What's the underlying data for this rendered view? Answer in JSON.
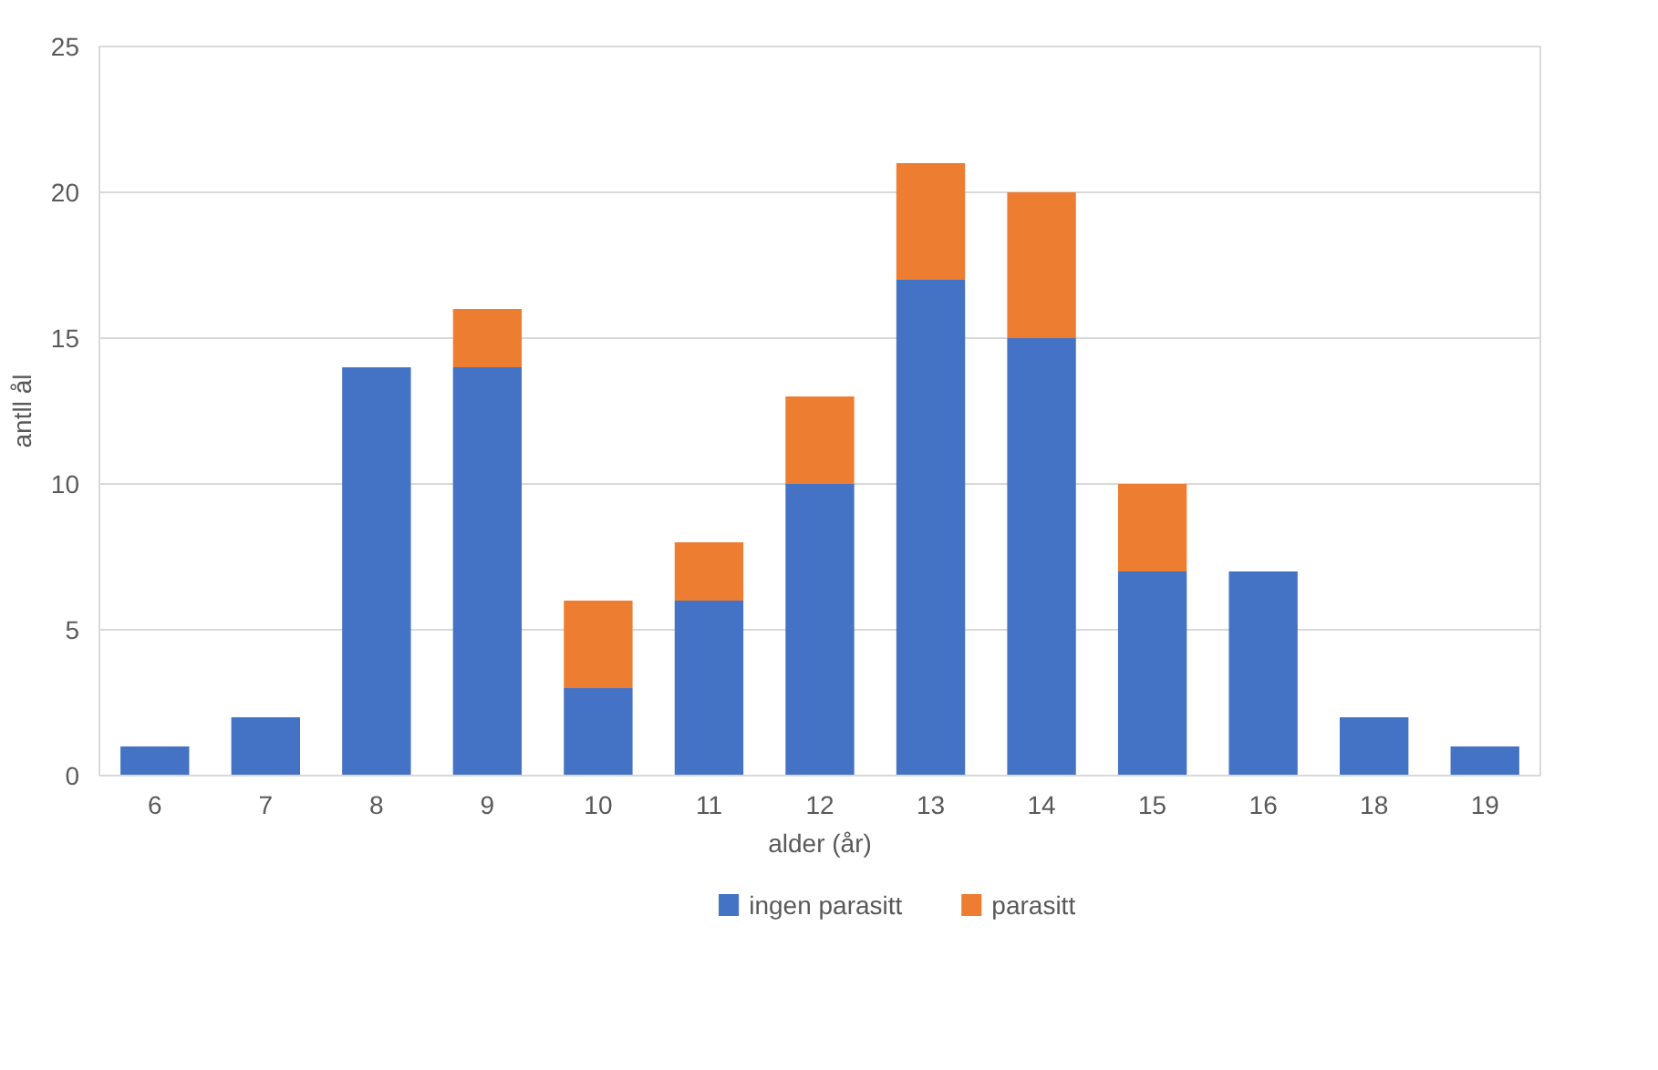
{
  "chart_data": {
    "type": "bar",
    "stacked": true,
    "xlabel": "alder (år)",
    "ylabel": "antll ål",
    "categories": [
      "6",
      "7",
      "8",
      "9",
      "10",
      "11",
      "12",
      "13",
      "14",
      "15",
      "16",
      "18",
      "19"
    ],
    "series": [
      {
        "name": "ingen parasitt",
        "color": "#4472c4",
        "values": [
          1,
          2,
          14,
          14,
          3,
          6,
          10,
          17,
          15,
          7,
          7,
          2,
          1
        ]
      },
      {
        "name": "parasitt",
        "color": "#ed7d31",
        "values": [
          0,
          0,
          0,
          2,
          3,
          2,
          3,
          4,
          5,
          3,
          0,
          0,
          0
        ]
      }
    ],
    "ylim": [
      0,
      25
    ],
    "yticks": [
      0,
      5,
      10,
      15,
      20,
      25
    ],
    "grid": "y",
    "legend": "bottom"
  }
}
